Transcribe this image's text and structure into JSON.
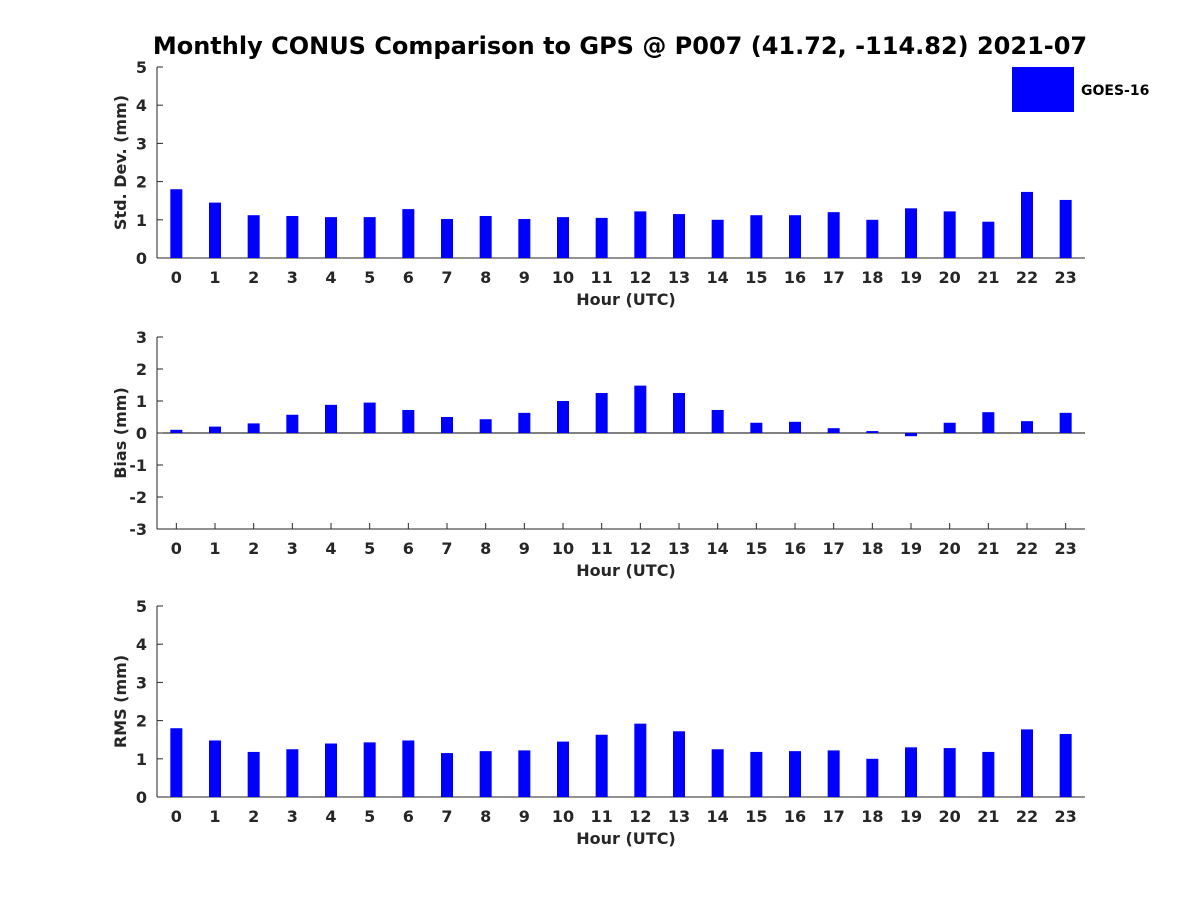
{
  "figure": {
    "title": "Monthly CONUS Comparison to GPS @ P007 (41.72, -114.82) 2021-07",
    "legend": {
      "label": "GOES-16",
      "color": "#0000FF"
    },
    "bar_color": "#0000FF"
  },
  "chart_data": [
    {
      "type": "bar",
      "name": "std-dev",
      "xlabel": "Hour (UTC)",
      "ylabel": "Std. Dev. (mm)",
      "ylim": [
        0,
        5
      ],
      "yticks": [
        0,
        1,
        2,
        3,
        4,
        5
      ],
      "categories": [
        "0",
        "1",
        "2",
        "3",
        "4",
        "5",
        "6",
        "7",
        "8",
        "9",
        "10",
        "11",
        "12",
        "13",
        "14",
        "15",
        "16",
        "17",
        "18",
        "19",
        "20",
        "21",
        "22",
        "23"
      ],
      "series": [
        {
          "name": "GOES-16",
          "values": [
            1.8,
            1.45,
            1.12,
            1.1,
            1.07,
            1.07,
            1.28,
            1.02,
            1.1,
            1.02,
            1.07,
            1.05,
            1.22,
            1.15,
            1.0,
            1.12,
            1.12,
            1.2,
            1.0,
            1.3,
            1.22,
            0.95,
            1.73,
            1.52
          ]
        }
      ]
    },
    {
      "type": "bar",
      "name": "bias",
      "xlabel": "Hour (UTC)",
      "ylabel": "Bias (mm)",
      "ylim": [
        -3,
        3
      ],
      "yticks": [
        -3,
        -2,
        -1,
        0,
        1,
        2,
        3
      ],
      "categories": [
        "0",
        "1",
        "2",
        "3",
        "4",
        "5",
        "6",
        "7",
        "8",
        "9",
        "10",
        "11",
        "12",
        "13",
        "14",
        "15",
        "16",
        "17",
        "18",
        "19",
        "20",
        "21",
        "22",
        "23"
      ],
      "series": [
        {
          "name": "GOES-16",
          "values": [
            0.1,
            0.2,
            0.3,
            0.57,
            0.88,
            0.95,
            0.72,
            0.5,
            0.43,
            0.63,
            1.0,
            1.25,
            1.48,
            1.25,
            0.72,
            0.32,
            0.35,
            0.15,
            0.06,
            -0.1,
            0.32,
            0.65,
            0.37,
            0.63
          ]
        }
      ]
    },
    {
      "type": "bar",
      "name": "rms",
      "xlabel": "Hour (UTC)",
      "ylabel": "RMS (mm)",
      "ylim": [
        0,
        5
      ],
      "yticks": [
        0,
        1,
        2,
        3,
        4,
        5
      ],
      "categories": [
        "0",
        "1",
        "2",
        "3",
        "4",
        "5",
        "6",
        "7",
        "8",
        "9",
        "10",
        "11",
        "12",
        "13",
        "14",
        "15",
        "16",
        "17",
        "18",
        "19",
        "20",
        "21",
        "22",
        "23"
      ],
      "series": [
        {
          "name": "GOES-16",
          "values": [
            1.8,
            1.48,
            1.18,
            1.25,
            1.4,
            1.43,
            1.48,
            1.15,
            1.2,
            1.22,
            1.45,
            1.63,
            1.92,
            1.72,
            1.25,
            1.18,
            1.2,
            1.22,
            1.0,
            1.3,
            1.28,
            1.18,
            1.77,
            1.65
          ]
        }
      ]
    }
  ]
}
